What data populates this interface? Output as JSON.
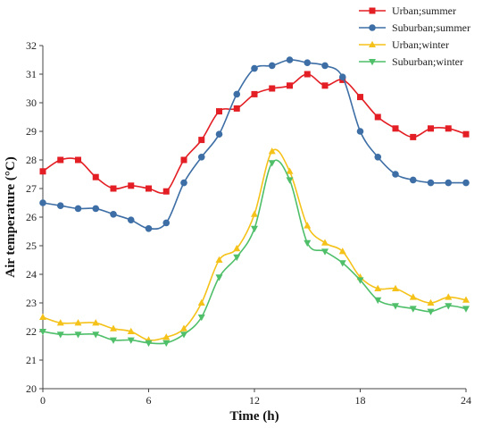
{
  "chart_data": {
    "type": "line",
    "xlabel": "Time (h)",
    "ylabel": "Air temperature (°C)",
    "xlim": [
      0,
      24
    ],
    "ylim": [
      20,
      32
    ],
    "x_ticks": [
      0,
      6,
      12,
      18,
      24
    ],
    "y_ticks": [
      20,
      21,
      22,
      23,
      24,
      25,
      26,
      27,
      28,
      29,
      30,
      31,
      32
    ],
    "grid": false,
    "legend_position": "top-right",
    "x": [
      0,
      1,
      2,
      3,
      4,
      5,
      6,
      7,
      8,
      9,
      10,
      11,
      12,
      13,
      14,
      15,
      16,
      17,
      18,
      19,
      20,
      21,
      22,
      23,
      24
    ],
    "series": [
      {
        "name": "Urban;summer",
        "color": "#e31e24",
        "marker": "square",
        "values": [
          27.6,
          28.0,
          28.0,
          27.4,
          27.0,
          27.1,
          27.0,
          26.9,
          28.0,
          28.7,
          29.7,
          29.8,
          30.3,
          30.5,
          30.6,
          31.0,
          30.6,
          30.8,
          30.2,
          29.5,
          29.1,
          28.8,
          29.1,
          29.1,
          28.9
        ]
      },
      {
        "name": "Suburban;summer",
        "color": "#3d6ea5",
        "marker": "circle",
        "values": [
          26.5,
          26.4,
          26.3,
          26.3,
          26.1,
          25.9,
          25.6,
          25.8,
          27.2,
          28.1,
          28.9,
          30.3,
          31.2,
          31.3,
          31.5,
          31.4,
          31.3,
          30.9,
          29.0,
          28.1,
          27.5,
          27.3,
          27.2,
          27.2,
          27.2
        ]
      },
      {
        "name": "Urban;winter",
        "color": "#f5c21a",
        "marker": "triangle-up",
        "values": [
          22.5,
          22.3,
          22.3,
          22.3,
          22.1,
          22.0,
          21.7,
          21.8,
          22.1,
          23.0,
          24.5,
          24.9,
          26.1,
          28.3,
          27.6,
          25.7,
          25.1,
          24.8,
          23.9,
          23.5,
          23.5,
          23.2,
          23.0,
          23.2,
          23.1
        ]
      },
      {
        "name": "Suburban;winter",
        "color": "#4fbf6a",
        "marker": "triangle-down",
        "values": [
          22.0,
          21.9,
          21.9,
          21.9,
          21.7,
          21.7,
          21.6,
          21.6,
          21.9,
          22.5,
          23.9,
          24.6,
          25.6,
          27.9,
          27.3,
          25.1,
          24.8,
          24.4,
          23.8,
          23.1,
          22.9,
          22.8,
          22.7,
          22.9,
          22.8
        ]
      }
    ]
  }
}
